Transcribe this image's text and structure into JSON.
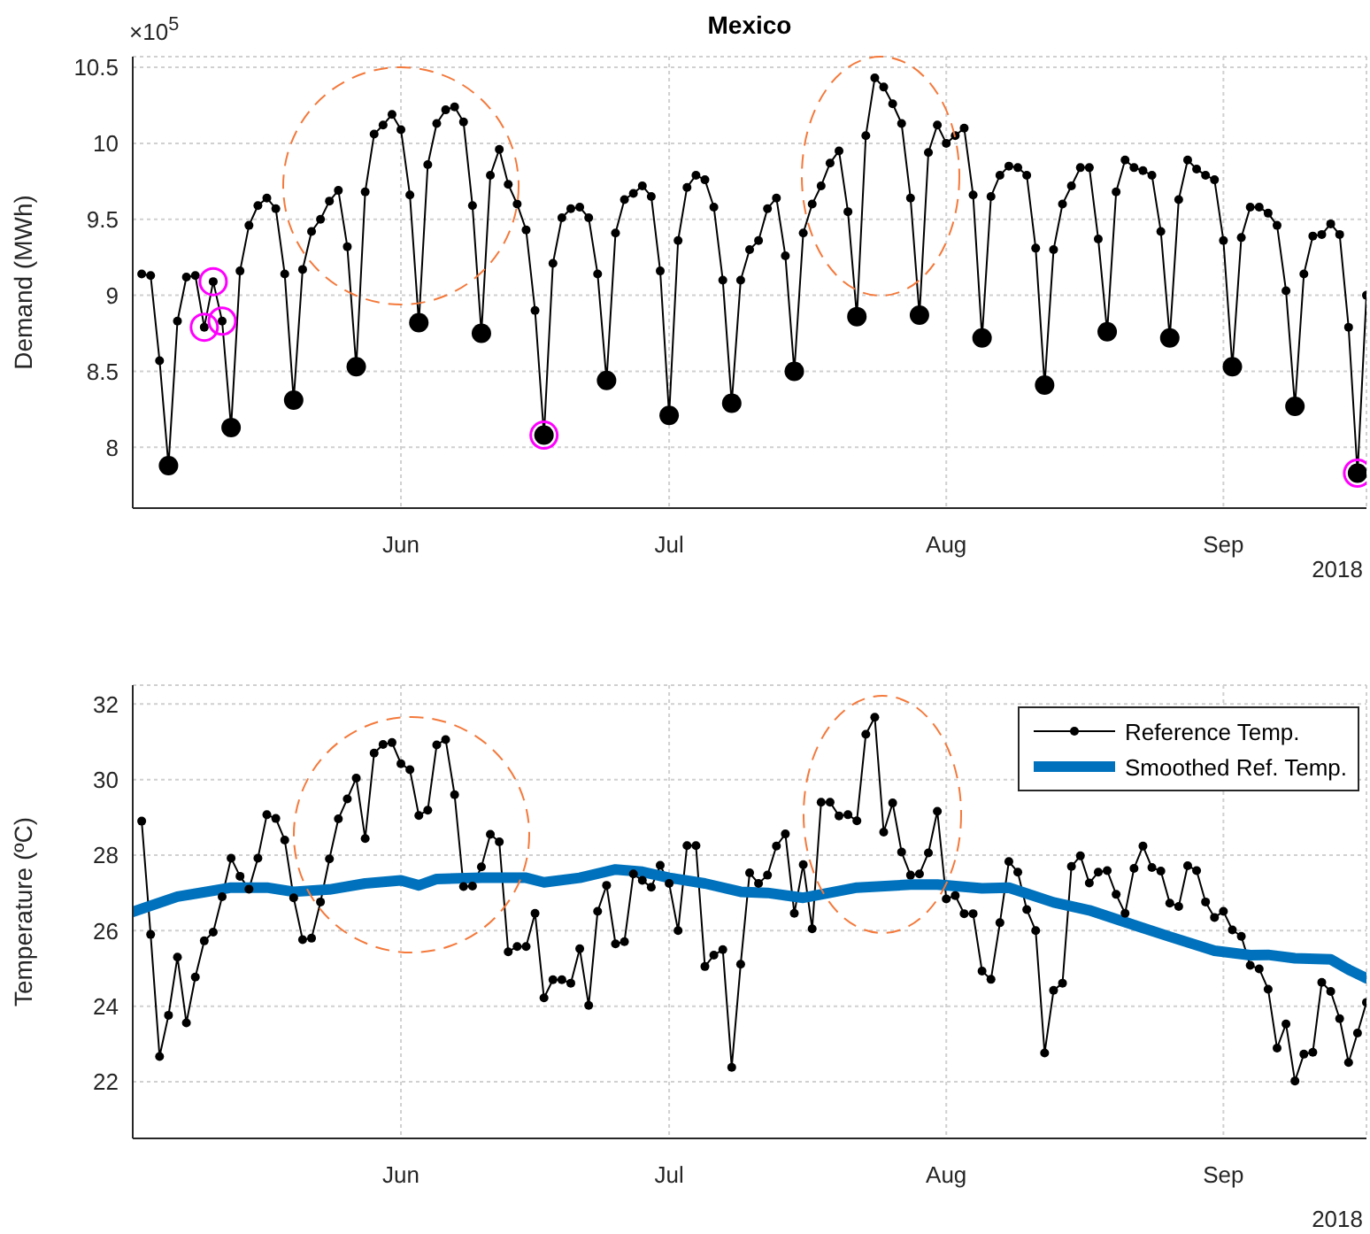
{
  "chart_data": [
    {
      "type": "line",
      "title": "Mexico",
      "ylabel": "Demand (MWh)",
      "annotations": [
        "×10$^{5}$",
        "2018"
      ],
      "marker": "circle",
      "grid": true,
      "xlim": [
        "2018-05-02",
        "2018-09-17"
      ],
      "xticks": [
        {
          "value": "2018-06-01",
          "label": "Jun"
        },
        {
          "value": "2018-07-01",
          "label": "Jul"
        },
        {
          "value": "2018-08-01",
          "label": "Aug"
        },
        {
          "value": "2018-09-01",
          "label": "Sep"
        }
      ],
      "ylim": [
        7.6,
        10.57
      ],
      "yticks": [
        8,
        8.5,
        9,
        9.5,
        10,
        10.5
      ],
      "x": [
        "2018-05-03",
        "2018-05-04",
        "2018-05-05",
        "2018-05-06",
        "2018-05-07",
        "2018-05-08",
        "2018-05-09",
        "2018-05-10",
        "2018-05-11",
        "2018-05-12",
        "2018-05-13",
        "2018-05-14",
        "2018-05-15",
        "2018-05-16",
        "2018-05-17",
        "2018-05-18",
        "2018-05-19",
        "2018-05-20",
        "2018-05-21",
        "2018-05-22",
        "2018-05-23",
        "2018-05-24",
        "2018-05-25",
        "2018-05-26",
        "2018-05-27",
        "2018-05-28",
        "2018-05-29",
        "2018-05-30",
        "2018-05-31",
        "2018-06-01",
        "2018-06-02",
        "2018-06-03",
        "2018-06-04",
        "2018-06-05",
        "2018-06-06",
        "2018-06-07",
        "2018-06-08",
        "2018-06-09",
        "2018-06-10",
        "2018-06-11",
        "2018-06-12",
        "2018-06-13",
        "2018-06-14",
        "2018-06-15",
        "2018-06-16",
        "2018-06-17",
        "2018-06-18",
        "2018-06-19",
        "2018-06-20",
        "2018-06-21",
        "2018-06-22",
        "2018-06-23",
        "2018-06-24",
        "2018-06-25",
        "2018-06-26",
        "2018-06-27",
        "2018-06-28",
        "2018-06-29",
        "2018-06-30",
        "2018-07-01",
        "2018-07-02",
        "2018-07-03",
        "2018-07-04",
        "2018-07-05",
        "2018-07-06",
        "2018-07-07",
        "2018-07-08",
        "2018-07-09",
        "2018-07-10",
        "2018-07-11",
        "2018-07-12",
        "2018-07-13",
        "2018-07-14",
        "2018-07-15",
        "2018-07-16",
        "2018-07-17",
        "2018-07-18",
        "2018-07-19",
        "2018-07-20",
        "2018-07-21",
        "2018-07-22",
        "2018-07-23",
        "2018-07-24",
        "2018-07-25",
        "2018-07-26",
        "2018-07-27",
        "2018-07-28",
        "2018-07-29",
        "2018-07-30",
        "2018-07-31",
        "2018-08-01",
        "2018-08-02",
        "2018-08-03",
        "2018-08-04",
        "2018-08-05",
        "2018-08-06",
        "2018-08-07",
        "2018-08-08",
        "2018-08-09",
        "2018-08-10",
        "2018-08-11",
        "2018-08-12",
        "2018-08-13",
        "2018-08-14",
        "2018-08-15",
        "2018-08-16",
        "2018-08-17",
        "2018-08-18",
        "2018-08-19",
        "2018-08-20",
        "2018-08-21",
        "2018-08-22",
        "2018-08-23",
        "2018-08-24",
        "2018-08-25",
        "2018-08-26",
        "2018-08-27",
        "2018-08-28",
        "2018-08-29",
        "2018-08-30",
        "2018-08-31",
        "2018-09-01",
        "2018-09-02",
        "2018-09-03",
        "2018-09-04",
        "2018-09-05",
        "2018-09-06",
        "2018-09-07",
        "2018-09-08",
        "2018-09-09",
        "2018-09-10",
        "2018-09-11",
        "2018-09-12",
        "2018-09-13",
        "2018-09-14",
        "2018-09-15",
        "2018-09-16",
        "2018-09-17"
      ],
      "series": [
        {
          "color": "#000000",
          "values": [
            9.14,
            9.13,
            8.57,
            7.88,
            8.83,
            9.12,
            9.13,
            8.79,
            9.09,
            8.83,
            8.13,
            9.16,
            9.46,
            9.59,
            9.64,
            9.57,
            9.14,
            8.31,
            9.17,
            9.42,
            9.5,
            9.62,
            9.69,
            9.32,
            8.53,
            9.68,
            10.06,
            10.12,
            10.19,
            10.09,
            9.66,
            8.82,
            9.86,
            10.13,
            10.22,
            10.24,
            10.14,
            9.59,
            8.75,
            9.79,
            9.96,
            9.73,
            9.6,
            9.43,
            8.9,
            8.08,
            9.21,
            9.51,
            9.57,
            9.58,
            9.51,
            9.14,
            8.44,
            9.41,
            9.63,
            9.67,
            9.72,
            9.65,
            9.16,
            8.21,
            9.36,
            9.71,
            9.79,
            9.76,
            9.58,
            9.1,
            8.29,
            9.1,
            9.3,
            9.36,
            9.57,
            9.64,
            9.26,
            8.5,
            9.41,
            9.6,
            9.72,
            9.87,
            9.95,
            9.55,
            8.86,
            10.05,
            10.43,
            10.37,
            10.26,
            10.13,
            9.64,
            8.87,
            9.94,
            10.12,
            10.0,
            10.05,
            10.1,
            9.66,
            8.72,
            9.65,
            9.79,
            9.85,
            9.84,
            9.79,
            9.31,
            8.41,
            9.3,
            9.6,
            9.72,
            9.84,
            9.84,
            9.37,
            8.76,
            9.68,
            9.89,
            9.84,
            9.82,
            9.79,
            9.42,
            8.72,
            9.63,
            9.89,
            9.83,
            9.79,
            9.76,
            9.36,
            8.53,
            9.38,
            9.58,
            9.58,
            9.54,
            9.46,
            9.03,
            8.27,
            9.14,
            9.39,
            9.4,
            9.47,
            9.4,
            8.79,
            7.83,
            9.0
          ]
        },
        {
          "type": "scatter",
          "color": "#000000",
          "x": [
            "2018-05-06",
            "2018-05-13",
            "2018-05-20",
            "2018-05-27",
            "2018-06-03",
            "2018-06-10",
            "2018-06-17",
            "2018-06-24",
            "2018-07-01",
            "2018-07-08",
            "2018-07-15",
            "2018-07-22",
            "2018-07-29",
            "2018-08-05",
            "2018-08-12",
            "2018-08-19",
            "2018-08-26",
            "2018-09-02",
            "2018-09-09",
            "2018-09-16"
          ],
          "values": [
            7.88,
            8.13,
            8.31,
            8.53,
            8.82,
            8.75,
            8.08,
            8.44,
            8.21,
            8.29,
            8.5,
            8.86,
            8.87,
            8.72,
            8.41,
            8.76,
            8.72,
            8.53,
            8.27,
            7.83
          ]
        },
        {
          "type": "scatter",
          "color": "#ff00ff",
          "x": [
            "2018-05-10",
            "2018-05-11",
            "2018-05-12",
            "2018-06-17",
            "2018-09-16"
          ],
          "values": [
            8.79,
            9.09,
            8.83,
            8.08,
            7.83
          ]
        }
      ]
    },
    {
      "type": "line",
      "ylabel": "Temperature (ºC)",
      "annotations": [
        "2018"
      ],
      "marker": "circle",
      "grid": true,
      "legend": "top right",
      "xlim": [
        "2018-05-02",
        "2018-09-17"
      ],
      "xticks": [
        {
          "value": "2018-06-01",
          "label": "Jun"
        },
        {
          "value": "2018-07-01",
          "label": "Jul"
        },
        {
          "value": "2018-08-01",
          "label": "Aug"
        },
        {
          "value": "2018-09-01",
          "label": "Sep"
        }
      ],
      "ylim": [
        20.5,
        32.5
      ],
      "yticks": [
        22,
        24,
        26,
        28,
        30,
        32
      ],
      "x": [
        "2018-05-03",
        "2018-05-04",
        "2018-05-05",
        "2018-05-06",
        "2018-05-07",
        "2018-05-08",
        "2018-05-09",
        "2018-05-10",
        "2018-05-11",
        "2018-05-12",
        "2018-05-13",
        "2018-05-14",
        "2018-05-15",
        "2018-05-16",
        "2018-05-17",
        "2018-05-18",
        "2018-05-19",
        "2018-05-20",
        "2018-05-21",
        "2018-05-22",
        "2018-05-23",
        "2018-05-24",
        "2018-05-25",
        "2018-05-26",
        "2018-05-27",
        "2018-05-28",
        "2018-05-29",
        "2018-05-30",
        "2018-05-31",
        "2018-06-01",
        "2018-06-02",
        "2018-06-03",
        "2018-06-04",
        "2018-06-05",
        "2018-06-06",
        "2018-06-07",
        "2018-06-08",
        "2018-06-09",
        "2018-06-10",
        "2018-06-11",
        "2018-06-12",
        "2018-06-13",
        "2018-06-14",
        "2018-06-15",
        "2018-06-16",
        "2018-06-17",
        "2018-06-18",
        "2018-06-19",
        "2018-06-20",
        "2018-06-21",
        "2018-06-22",
        "2018-06-23",
        "2018-06-24",
        "2018-06-25",
        "2018-06-26",
        "2018-06-27",
        "2018-06-28",
        "2018-06-29",
        "2018-06-30",
        "2018-07-01",
        "2018-07-02",
        "2018-07-03",
        "2018-07-04",
        "2018-07-05",
        "2018-07-06",
        "2018-07-07",
        "2018-07-08",
        "2018-07-09",
        "2018-07-10",
        "2018-07-11",
        "2018-07-12",
        "2018-07-13",
        "2018-07-14",
        "2018-07-15",
        "2018-07-16",
        "2018-07-17",
        "2018-07-18",
        "2018-07-19",
        "2018-07-20",
        "2018-07-21",
        "2018-07-22",
        "2018-07-23",
        "2018-07-24",
        "2018-07-25",
        "2018-07-26",
        "2018-07-27",
        "2018-07-28",
        "2018-07-29",
        "2018-07-30",
        "2018-07-31",
        "2018-08-01",
        "2018-08-02",
        "2018-08-03",
        "2018-08-04",
        "2018-08-05",
        "2018-08-06",
        "2018-08-07",
        "2018-08-08",
        "2018-08-09",
        "2018-08-10",
        "2018-08-11",
        "2018-08-12",
        "2018-08-13",
        "2018-08-14",
        "2018-08-15",
        "2018-08-16",
        "2018-08-17",
        "2018-08-18",
        "2018-08-19",
        "2018-08-20",
        "2018-08-21",
        "2018-08-22",
        "2018-08-23",
        "2018-08-24",
        "2018-08-25",
        "2018-08-26",
        "2018-08-27",
        "2018-08-28",
        "2018-08-29",
        "2018-08-30",
        "2018-08-31",
        "2018-09-01",
        "2018-09-02",
        "2018-09-03",
        "2018-09-04",
        "2018-09-05",
        "2018-09-06",
        "2018-09-07",
        "2018-09-08",
        "2018-09-09",
        "2018-09-10",
        "2018-09-11",
        "2018-09-12",
        "2018-09-13",
        "2018-09-14",
        "2018-09-15",
        "2018-09-16",
        "2018-09-17"
      ],
      "series": [
        {
          "name": "Reference Temp.",
          "color": "#000000",
          "values": [
            28.9,
            25.9,
            22.67,
            23.76,
            25.3,
            23.56,
            24.77,
            25.73,
            25.96,
            26.9,
            27.92,
            27.44,
            27.1,
            27.92,
            29.07,
            28.97,
            28.4,
            26.87,
            25.76,
            25.8,
            26.76,
            27.9,
            28.96,
            29.49,
            30.04,
            28.44,
            30.7,
            30.93,
            30.98,
            30.42,
            30.26,
            29.05,
            29.19,
            30.92,
            31.06,
            29.6,
            27.17,
            27.18,
            27.69,
            28.55,
            28.35,
            25.44,
            25.58,
            25.58,
            26.46,
            24.22,
            24.7,
            24.7,
            24.61,
            25.52,
            24.02,
            26.51,
            27.2,
            25.65,
            25.71,
            27.5,
            27.33,
            27.15,
            27.73,
            27.25,
            26.0,
            28.25,
            28.25,
            25.05,
            25.35,
            25.5,
            22.38,
            25.11,
            27.53,
            27.25,
            27.47,
            28.24,
            28.56,
            26.46,
            27.75,
            26.05,
            29.4,
            29.4,
            29.04,
            29.07,
            28.91,
            31.2,
            31.65,
            28.61,
            29.38,
            28.08,
            27.47,
            27.5,
            28.06,
            29.16,
            26.84,
            26.93,
            26.45,
            26.45,
            24.93,
            24.71,
            26.21,
            27.83,
            27.55,
            26.56,
            26.0,
            22.76,
            24.42,
            24.61,
            27.7,
            27.98,
            27.26,
            27.55,
            27.59,
            26.96,
            26.46,
            27.65,
            28.24,
            27.67,
            27.58,
            26.73,
            26.64,
            27.72,
            27.59,
            26.76,
            26.35,
            26.51,
            26.02,
            25.85,
            25.08,
            24.99,
            24.45,
            22.89,
            23.53,
            22.02,
            22.73,
            22.78,
            24.63,
            24.39,
            23.67,
            22.51,
            23.29,
            24.1
          ]
        },
        {
          "name": "Smoothed Ref. Temp.",
          "color": "#0072bd",
          "marker": "none",
          "x": [
            "2018-05-02",
            "2018-05-07",
            "2018-05-13",
            "2018-05-17",
            "2018-05-20",
            "2018-05-24",
            "2018-05-28",
            "2018-06-01",
            "2018-06-03",
            "2018-06-05",
            "2018-06-10",
            "2018-06-15",
            "2018-06-17",
            "2018-06-21",
            "2018-06-25",
            "2018-06-28",
            "2018-07-01",
            "2018-07-05",
            "2018-07-09",
            "2018-07-12",
            "2018-07-16",
            "2018-07-18",
            "2018-07-22",
            "2018-07-28",
            "2018-07-31",
            "2018-08-05",
            "2018-08-08",
            "2018-08-13",
            "2018-08-17",
            "2018-08-22",
            "2018-08-26",
            "2018-08-31",
            "2018-09-04",
            "2018-09-06",
            "2018-09-09",
            "2018-09-13",
            "2018-09-15",
            "2018-09-17"
          ],
          "values": [
            26.5,
            26.9,
            27.14,
            27.14,
            27.03,
            27.09,
            27.25,
            27.33,
            27.2,
            27.37,
            27.4,
            27.4,
            27.28,
            27.4,
            27.62,
            27.56,
            27.4,
            27.25,
            27.03,
            27.0,
            26.87,
            26.96,
            27.14,
            27.22,
            27.22,
            27.12,
            27.14,
            26.75,
            26.54,
            26.15,
            25.84,
            25.47,
            25.35,
            25.36,
            25.27,
            25.24,
            24.97,
            24.74
          ]
        }
      ]
    }
  ]
}
